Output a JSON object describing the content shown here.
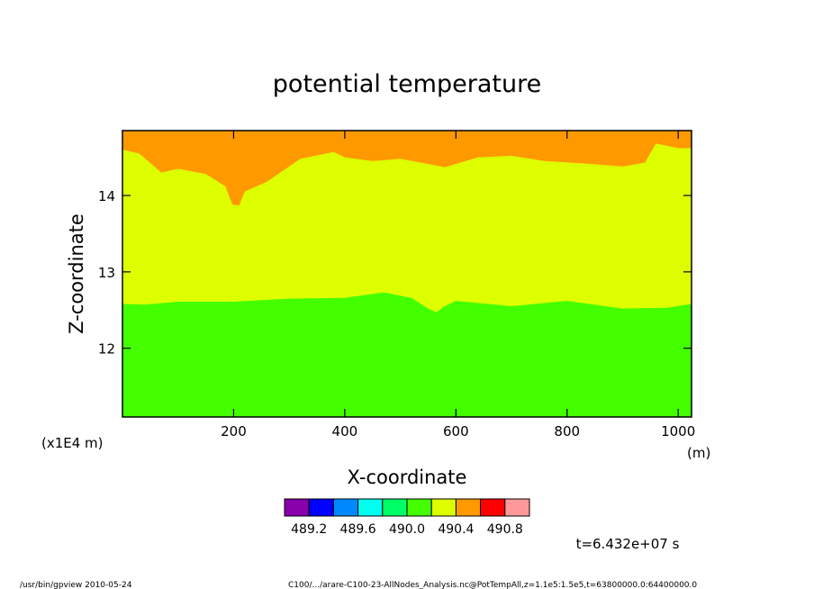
{
  "chart_data": {
    "type": "heatmap",
    "title": "potential temperature",
    "xlabel": "X-coordinate",
    "ylabel": "Z-coordinate",
    "x_unit": "(m)",
    "y_unit": "(x1E4 m)",
    "xlim": [
      0,
      1024
    ],
    "ylim": [
      11.1,
      14.85
    ],
    "x_ticks": [
      200,
      400,
      600,
      800,
      1000
    ],
    "y_ticks": [
      12,
      13,
      14
    ],
    "colorbar": {
      "colors": [
        "#8800aa",
        "#0000ff",
        "#0088ff",
        "#00ffee",
        "#00ff66",
        "#44ff00",
        "#ddff00",
        "#ff9900",
        "#ff0000",
        "#ff9999"
      ],
      "labels": [
        "489.2",
        "489.6",
        "490.0",
        "490.4",
        "490.8"
      ]
    },
    "layers": [
      {
        "color": "#44ff00",
        "range": "490.2-490.3",
        "boundary_top": [
          [
            0,
            12.58
          ],
          [
            40,
            12.57
          ],
          [
            100,
            12.61
          ],
          [
            200,
            12.61
          ],
          [
            300,
            12.65
          ],
          [
            400,
            12.66
          ],
          [
            470,
            12.73
          ],
          [
            520,
            12.66
          ],
          [
            550,
            12.52
          ],
          [
            565,
            12.47
          ],
          [
            580,
            12.55
          ],
          [
            600,
            12.62
          ],
          [
            700,
            12.55
          ],
          [
            800,
            12.62
          ],
          [
            900,
            12.52
          ],
          [
            980,
            12.53
          ],
          [
            1024,
            12.58
          ]
        ]
      },
      {
        "color": "#ddff00",
        "range": "490.3-490.4",
        "boundary_top": [
          [
            0,
            14.6
          ],
          [
            30,
            14.55
          ],
          [
            70,
            14.3
          ],
          [
            100,
            14.35
          ],
          [
            150,
            14.28
          ],
          [
            185,
            14.12
          ],
          [
            198,
            13.88
          ],
          [
            210,
            13.87
          ],
          [
            220,
            14.05
          ],
          [
            260,
            14.18
          ],
          [
            320,
            14.48
          ],
          [
            380,
            14.57
          ],
          [
            400,
            14.5
          ],
          [
            450,
            14.45
          ],
          [
            500,
            14.48
          ],
          [
            560,
            14.4
          ],
          [
            580,
            14.37
          ],
          [
            640,
            14.5
          ],
          [
            700,
            14.52
          ],
          [
            760,
            14.45
          ],
          [
            830,
            14.42
          ],
          [
            900,
            14.38
          ],
          [
            940,
            14.43
          ],
          [
            960,
            14.68
          ],
          [
            1000,
            14.62
          ],
          [
            1024,
            14.62
          ]
        ]
      },
      {
        "color": "#ff9900",
        "range": "490.4-490.5",
        "boundary_top": [
          [
            0,
            14.85
          ],
          [
            1024,
            14.85
          ]
        ]
      }
    ],
    "annotation": "t=6.432e+07 s"
  },
  "footer": {
    "left": "/usr/bin/gpview   2010-05-24",
    "right": "C100/.../arare-C100-23-AllNodes_Analysis.nc@PotTempAll,z=1.1e5:1.5e5,t=63800000.0:64400000.0"
  }
}
